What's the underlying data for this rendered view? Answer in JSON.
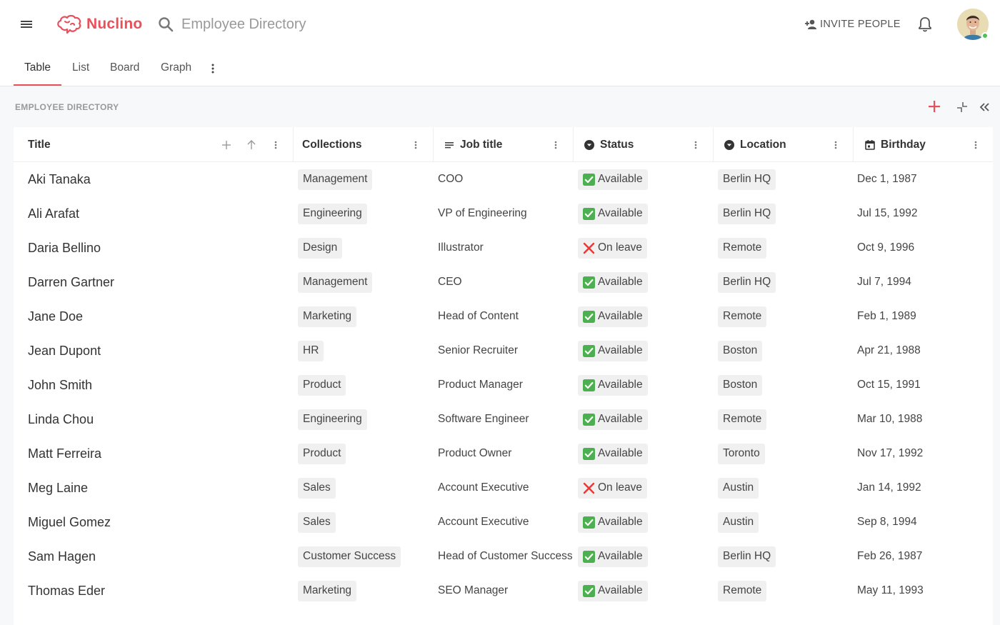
{
  "header": {
    "app_name": "Nuclino",
    "search_placeholder": "Employee Directory",
    "invite_label": "INVITE PEOPLE",
    "brand_color": "#e8505b"
  },
  "tabs": [
    {
      "label": "Table",
      "active": true
    },
    {
      "label": "List",
      "active": false
    },
    {
      "label": "Board",
      "active": false
    },
    {
      "label": "Graph",
      "active": false
    }
  ],
  "section": {
    "title": "EMPLOYEE DIRECTORY"
  },
  "table": {
    "columns": [
      {
        "label": "Title",
        "icon": "none"
      },
      {
        "label": "Collections",
        "icon": "none"
      },
      {
        "label": "Job title",
        "icon": "text-lines-icon"
      },
      {
        "label": "Status",
        "icon": "dropdown-circle-icon"
      },
      {
        "label": "Location",
        "icon": "dropdown-circle-icon"
      },
      {
        "label": "Birthday",
        "icon": "calendar-icon"
      }
    ],
    "rows": [
      {
        "title": "Aki Tanaka",
        "collection": "Management",
        "job": "COO",
        "status": "Available",
        "status_ok": true,
        "location": "Berlin HQ",
        "birthday": "Dec 1, 1987"
      },
      {
        "title": "Ali Arafat",
        "collection": "Engineering",
        "job": "VP of Engineering",
        "status": "Available",
        "status_ok": true,
        "location": "Berlin HQ",
        "birthday": "Jul 15, 1992"
      },
      {
        "title": "Daria Bellino",
        "collection": "Design",
        "job": "Illustrator",
        "status": "On leave",
        "status_ok": false,
        "location": "Remote",
        "birthday": "Oct 9, 1996"
      },
      {
        "title": "Darren Gartner",
        "collection": "Management",
        "job": "CEO",
        "status": "Available",
        "status_ok": true,
        "location": "Berlin HQ",
        "birthday": "Jul 7, 1994"
      },
      {
        "title": "Jane Doe",
        "collection": "Marketing",
        "job": "Head of Content",
        "status": "Available",
        "status_ok": true,
        "location": "Remote",
        "birthday": "Feb 1, 1989"
      },
      {
        "title": "Jean Dupont",
        "collection": "HR",
        "job": "Senior Recruiter",
        "status": "Available",
        "status_ok": true,
        "location": "Boston",
        "birthday": "Apr 21, 1988"
      },
      {
        "title": "John Smith",
        "collection": "Product",
        "job": "Product Manager",
        "status": "Available",
        "status_ok": true,
        "location": "Boston",
        "birthday": "Oct 15, 1991"
      },
      {
        "title": "Linda Chou",
        "collection": "Engineering",
        "job": "Software Engineer",
        "status": "Available",
        "status_ok": true,
        "location": "Remote",
        "birthday": "Mar 10, 1988"
      },
      {
        "title": "Matt Ferreira",
        "collection": "Product",
        "job": "Product Owner",
        "status": "Available",
        "status_ok": true,
        "location": "Toronto",
        "birthday": "Nov 17, 1992"
      },
      {
        "title": "Meg Laine",
        "collection": "Sales",
        "job": "Account Executive",
        "status": "On leave",
        "status_ok": false,
        "location": "Austin",
        "birthday": "Jan 14, 1992"
      },
      {
        "title": "Miguel Gomez",
        "collection": "Sales",
        "job": "Account Executive",
        "status": "Available",
        "status_ok": true,
        "location": "Austin",
        "birthday": "Sep 8, 1994"
      },
      {
        "title": "Sam Hagen",
        "collection": "Customer Success",
        "job": "Head of Customer Success",
        "status": "Available",
        "status_ok": true,
        "location": "Berlin HQ",
        "birthday": "Feb 26, 1987"
      },
      {
        "title": "Thomas Eder",
        "collection": "Marketing",
        "job": "SEO Manager",
        "status": "Available",
        "status_ok": true,
        "location": "Remote",
        "birthday": "May 11, 1993"
      }
    ]
  }
}
